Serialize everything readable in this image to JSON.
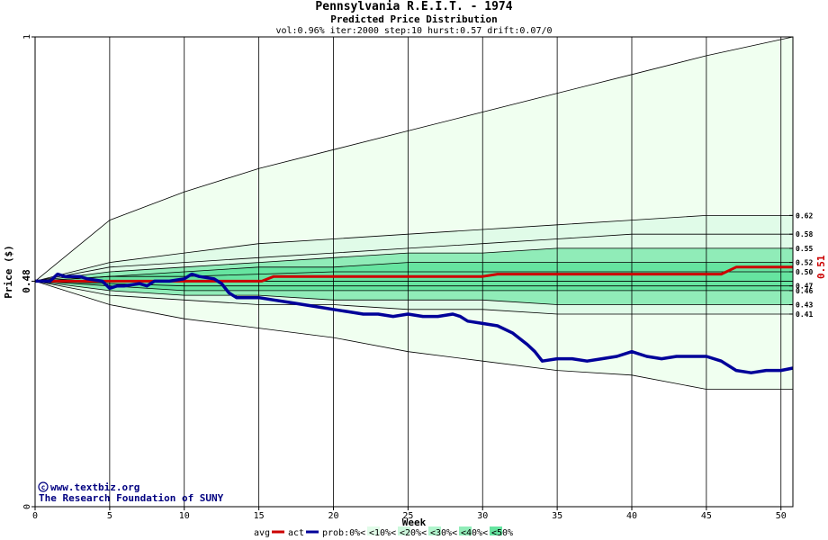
{
  "chart_data": {
    "type": "area",
    "title": "Pennsylvania R.E.I.T. - 1974",
    "subtitle": "Predicted Price Distribution",
    "params": "vol:0.96% iter:2000 step:10 hurst:0.57 drift:0.07/0",
    "xlabel": "Week",
    "ylabel": "Price ($)",
    "xlim": [
      0,
      50.8
    ],
    "ylim": [
      0,
      1
    ],
    "x_ticks": [
      0,
      5,
      10,
      15,
      20,
      25,
      30,
      35,
      40,
      45,
      50
    ],
    "y_ticks": [
      0,
      0.48,
      1
    ],
    "y_tick_labels": [
      "0",
      "0.48",
      "1"
    ],
    "grid": true,
    "legend_position": "bottom",
    "colors": {
      "avg": "#cc0000",
      "act": "#000099",
      "band_outer": "#f0fff0",
      "band_10": "#e0fbe8",
      "band_20": "#ccf8dc",
      "band_30": "#b0f4cc",
      "band_40": "#90ecb8",
      "band_50": "#66e4a0",
      "last_label": "#cc0000"
    },
    "percentile_labels": [
      "0.62",
      "0.58",
      "0.55",
      "0.52",
      "0.50",
      "0.47",
      "0.46",
      "0.43",
      "0.41"
    ],
    "last_price_label": "0.51",
    "bands": [
      {
        "name": "<10%",
        "x": [
          0,
          5,
          10,
          15,
          20,
          25,
          30,
          35,
          40,
          45,
          50.8
        ],
        "upper": [
          0.48,
          0.61,
          0.67,
          0.72,
          0.76,
          0.8,
          0.84,
          0.88,
          0.92,
          0.96,
          1.0
        ],
        "lower": [
          0.48,
          0.43,
          0.4,
          0.38,
          0.36,
          0.33,
          0.31,
          0.29,
          0.28,
          0.25,
          0.25
        ]
      },
      {
        "name": "<20%",
        "x": [
          0,
          5,
          10,
          15,
          20,
          25,
          30,
          35,
          40,
          45,
          50.8
        ],
        "upper": [
          0.48,
          0.52,
          0.54,
          0.56,
          0.57,
          0.58,
          0.59,
          0.6,
          0.61,
          0.62,
          0.62
        ],
        "lower": [
          0.48,
          0.45,
          0.44,
          0.43,
          0.43,
          0.42,
          0.42,
          0.41,
          0.41,
          0.41,
          0.41
        ]
      },
      {
        "name": "<30%",
        "x": [
          0,
          5,
          10,
          15,
          20,
          25,
          30,
          35,
          40,
          45,
          50.8
        ],
        "upper": [
          0.48,
          0.51,
          0.52,
          0.53,
          0.54,
          0.55,
          0.56,
          0.57,
          0.58,
          0.58,
          0.58
        ]
      },
      {
        "name": "<40%",
        "x": [
          0,
          5,
          10,
          15,
          20,
          25,
          30,
          35,
          40,
          45,
          50.8
        ],
        "upper": [
          0.48,
          0.5,
          0.51,
          0.52,
          0.53,
          0.54,
          0.54,
          0.55,
          0.55,
          0.55,
          0.55
        ],
        "lower": [
          0.48,
          0.46,
          0.45,
          0.45,
          0.44,
          0.44,
          0.44,
          0.43,
          0.43,
          0.43,
          0.43
        ]
      },
      {
        "name": "<50%",
        "x": [
          0,
          5,
          10,
          15,
          20,
          25,
          30,
          35,
          40,
          45,
          50.8
        ],
        "upper": [
          0.48,
          0.49,
          0.5,
          0.51,
          0.51,
          0.52,
          0.52,
          0.52,
          0.52,
          0.52,
          0.52
        ],
        "lower": [
          0.48,
          0.47,
          0.46,
          0.46,
          0.46,
          0.46,
          0.46,
          0.46,
          0.46,
          0.46,
          0.46
        ]
      }
    ],
    "inner_lines": [
      {
        "x": [
          0,
          5,
          10,
          15,
          20,
          25,
          30,
          35,
          40,
          45,
          50.8
        ],
        "y": [
          0.48,
          0.49,
          0.49,
          0.495,
          0.5,
          0.5,
          0.5,
          0.5,
          0.5,
          0.5,
          0.5
        ]
      },
      {
        "x": [
          0,
          5,
          10,
          15,
          20,
          25,
          30,
          35,
          40,
          45,
          50.8
        ],
        "y": [
          0.48,
          0.475,
          0.47,
          0.47,
          0.47,
          0.47,
          0.47,
          0.47,
          0.47,
          0.47,
          0.47
        ]
      }
    ],
    "series": [
      {
        "name": "avg",
        "x": [
          0,
          10,
          15.2,
          16,
          30,
          31,
          46,
          47,
          50.8
        ],
        "y": [
          0.48,
          0.48,
          0.48,
          0.49,
          0.49,
          0.495,
          0.495,
          0.51,
          0.51
        ]
      },
      {
        "name": "act",
        "x": [
          0,
          1,
          1.5,
          2,
          3,
          3.5,
          4.5,
          5,
          5.5,
          6,
          7,
          7.5,
          8,
          9,
          10,
          10.5,
          11,
          12,
          12.5,
          13,
          13.5,
          15,
          16,
          17,
          18,
          19,
          20,
          21,
          22,
          23,
          24,
          25,
          26,
          27,
          28,
          28.5,
          29,
          30,
          31,
          32,
          33,
          33.5,
          34,
          35,
          36,
          37,
          38,
          39,
          40,
          41,
          42,
          43,
          44,
          45,
          46,
          47,
          48,
          49,
          50,
          50.8
        ],
        "y": [
          0.48,
          0.48,
          0.495,
          0.49,
          0.49,
          0.485,
          0.48,
          0.465,
          0.47,
          0.47,
          0.475,
          0.47,
          0.48,
          0.48,
          0.485,
          0.495,
          0.49,
          0.485,
          0.475,
          0.455,
          0.445,
          0.445,
          0.44,
          0.435,
          0.43,
          0.425,
          0.42,
          0.415,
          0.41,
          0.41,
          0.405,
          0.41,
          0.405,
          0.405,
          0.41,
          0.405,
          0.395,
          0.39,
          0.385,
          0.37,
          0.345,
          0.33,
          0.31,
          0.315,
          0.315,
          0.31,
          0.315,
          0.32,
          0.33,
          0.32,
          0.315,
          0.32,
          0.32,
          0.32,
          0.31,
          0.29,
          0.285,
          0.29,
          0.29,
          0.295
        ]
      }
    ],
    "credit_lines": [
      "www.textbiz.org",
      "The Research Foundation of SUNY"
    ],
    "legend": [
      {
        "key": "avg",
        "label": "avg"
      },
      {
        "key": "act",
        "label": "act"
      },
      {
        "key": "band_outer",
        "label": "prob:0%<"
      },
      {
        "key": "band_10",
        "label": "<10%<"
      },
      {
        "key": "band_20",
        "label": "<20%<"
      },
      {
        "key": "band_30",
        "label": "<30%<"
      },
      {
        "key": "band_40",
        "label": "<40%<"
      },
      {
        "key": "band_50",
        "label": "<50%"
      }
    ]
  }
}
